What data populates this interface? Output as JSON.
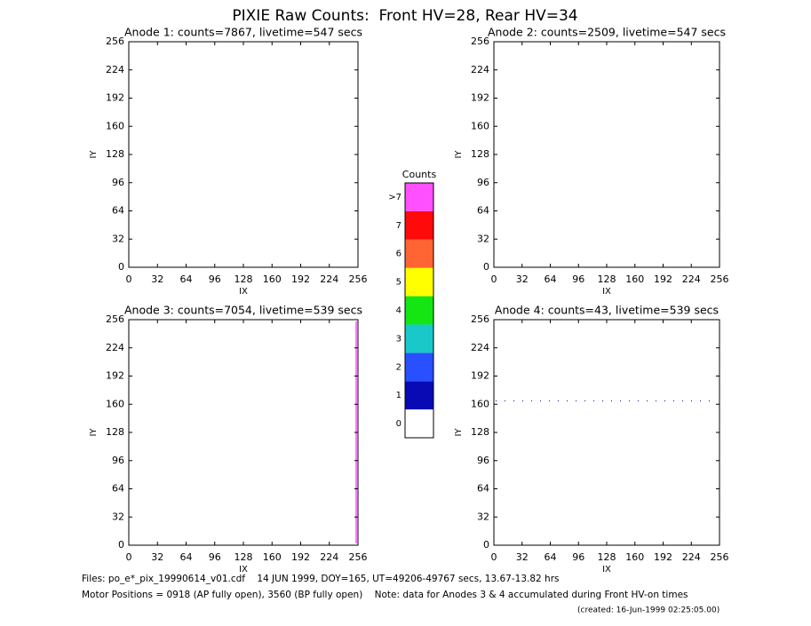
{
  "title": "PIXIE Raw Counts:  Front HV=28, Rear HV=34",
  "chart_data": [
    {
      "type": "scatter",
      "title": "Anode 1: counts=7867, livetime=547 secs",
      "xlabel": "IX",
      "ylabel": "IY",
      "xlim": [
        0,
        256
      ],
      "ylim": [
        0,
        256
      ],
      "xticks": [
        0,
        32,
        64,
        96,
        128,
        160,
        192,
        224,
        256
      ],
      "yticks": [
        0,
        32,
        64,
        96,
        128,
        160,
        192,
        224,
        256
      ]
    },
    {
      "type": "scatter",
      "title": "Anode 2: counts=2509, livetime=547 secs",
      "xlabel": "IX",
      "ylabel": "IY",
      "xlim": [
        0,
        256
      ],
      "ylim": [
        0,
        256
      ],
      "xticks": [
        0,
        32,
        64,
        96,
        128,
        160,
        192,
        224,
        256
      ],
      "yticks": [
        0,
        32,
        64,
        96,
        128,
        160,
        192,
        224,
        256
      ]
    },
    {
      "type": "scatter",
      "title": "Anode 3: counts=7054, livetime=539 secs",
      "xlabel": "IX",
      "ylabel": "IY",
      "xlim": [
        0,
        256
      ],
      "ylim": [
        0,
        256
      ],
      "xticks": [
        0,
        32,
        64,
        96,
        128,
        160,
        192,
        224,
        256
      ],
      "yticks": [
        0,
        32,
        64,
        96,
        128,
        160,
        192,
        224,
        256
      ]
    },
    {
      "type": "scatter",
      "title": "Anode 4: counts=43, livetime=539 secs",
      "xlabel": "IX",
      "ylabel": "IY",
      "xlim": [
        0,
        256
      ],
      "ylim": [
        0,
        256
      ],
      "xticks": [
        0,
        32,
        64,
        96,
        128,
        160,
        192,
        224,
        256
      ],
      "yticks": [
        0,
        32,
        64,
        96,
        128,
        160,
        192,
        224,
        256
      ]
    }
  ],
  "colorbar": {
    "title": "Counts",
    "labels": [
      0,
      1,
      2,
      3,
      4,
      5,
      6,
      7,
      ">7"
    ],
    "colors": [
      "#ffffff",
      "#0a0ab4",
      "#2850ff",
      "#19c8c8",
      "#14e614",
      "#ffff00",
      "#ff6432",
      "#ff0a0a",
      "#ff50ff"
    ]
  },
  "footer": {
    "files": "Files: po_e*_pix_19990614_v01.cdf    14 JUN 1999, DOY=165, UT=49206-49767 secs, 13.67-13.82 hrs",
    "motor": "Motor Positions = 0918 (AP fully open), 3560 (BP fully open)    Note: data for Anodes 3 & 4 accumulated during Front HV-on times",
    "created": "(created: 16-Jun-1999 02:25:05.00)"
  }
}
